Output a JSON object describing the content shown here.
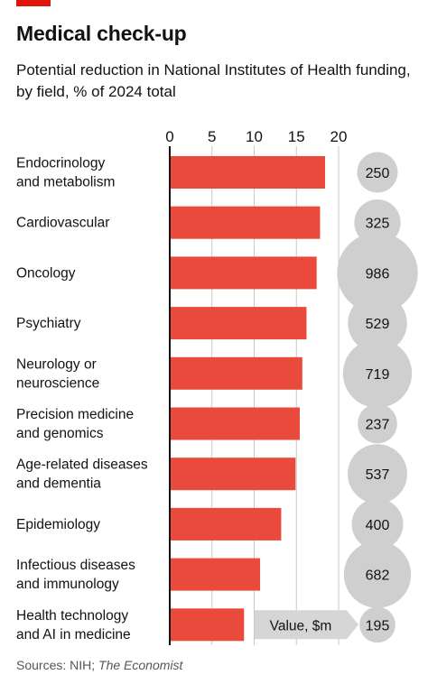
{
  "title": "Medical check-up",
  "subtitle": "Potential reduction in National Institutes of Health funding, by field, % of 2024 total",
  "source": {
    "prefix": "Sources: NIH; ",
    "publication": "The Economist"
  },
  "colors": {
    "accent": "#e3120b",
    "bar": "#e94a3b",
    "bubble": "#cfcfcf",
    "grid": "#c9c9c9",
    "axis": "#121212",
    "legend_box": "#d6d6d6"
  },
  "chart_data": {
    "type": "bar",
    "orientation": "horizontal",
    "title": "Medical check-up",
    "subtitle": "Potential reduction in National Institutes of Health funding, by field, % of 2024 total",
    "xlim": [
      0,
      20
    ],
    "xticks": [
      0,
      5,
      10,
      15,
      20
    ],
    "grid": true,
    "categories": [
      [
        "Endocrinology",
        "and metabolism"
      ],
      [
        "Cardiovascular"
      ],
      [
        "Oncology"
      ],
      [
        "Psychiatry"
      ],
      [
        "Neurology or",
        "neuroscience"
      ],
      [
        "Precision medicine",
        "and genomics"
      ],
      [
        "Age-related diseases",
        "and dementia"
      ],
      [
        "Epidemiology"
      ],
      [
        "Infectious diseases",
        "and immunology"
      ],
      [
        "Health technology",
        "and AI in medicine"
      ]
    ],
    "values": [
      18.4,
      17.8,
      17.4,
      16.2,
      15.7,
      15.4,
      14.9,
      13.2,
      10.7,
      8.8
    ],
    "bubble_values": [
      250,
      325,
      986,
      529,
      719,
      237,
      537,
      400,
      682,
      195
    ],
    "bubble_legend": "Value, $m"
  }
}
